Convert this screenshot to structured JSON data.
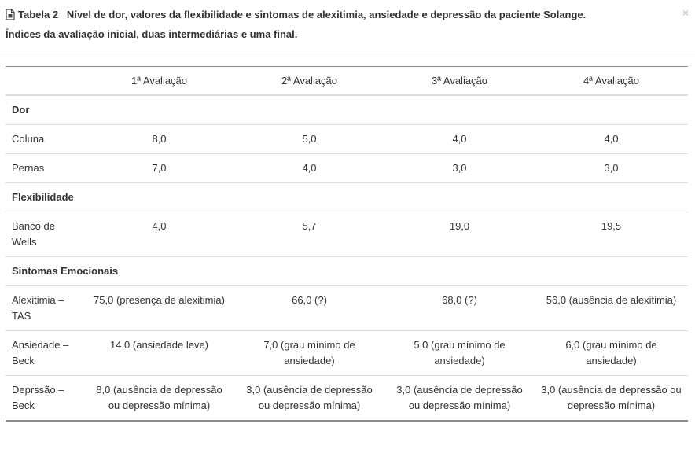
{
  "dialog": {
    "label": "Tabela 2",
    "title_line1": "Nível de dor, valores da flexibilidade e sintomas de alexitimia, ansiedade e depressão da paciente Solange.",
    "title_line2": "Índices da avaliação inicial, duas intermediárias e uma final.",
    "close_symbol": "×",
    "icon": "document-icon"
  },
  "table": {
    "columns": [
      "",
      "1ª Avaliação",
      "2ª Avaliação",
      "3ª Avaliação",
      "4ª Avaliação"
    ],
    "sections": [
      {
        "title": "Dor",
        "rows": [
          {
            "label": "Coluna",
            "values": [
              "8,0",
              "5,0",
              "4,0",
              "4,0"
            ]
          },
          {
            "label": "Pernas",
            "values": [
              "7,0",
              "4,0",
              "3,0",
              "3,0"
            ]
          }
        ]
      },
      {
        "title": "Flexibilidade",
        "rows": [
          {
            "label": "Banco de Wells",
            "values": [
              "4,0",
              "5,7",
              "19,0",
              "19,5"
            ]
          }
        ]
      },
      {
        "title": "Sintomas Emocionais",
        "rows": [
          {
            "label": "Alexitimia – TAS",
            "values": [
              "75,0 (presença de alexitimia)",
              "66,0 (?)",
              "68,0 (?)",
              "56,0 (ausência de alexitimia)"
            ]
          },
          {
            "label": "Ansiedade – Beck",
            "values": [
              "14,0 (ansiedade leve)",
              "7,0 (grau mínimo de ansiedade)",
              "5,0 (grau mínimo de ansiedade)",
              "6,0 (grau mínimo de ansiedade)"
            ]
          },
          {
            "label": "Deprssão – Beck",
            "values": [
              "8,0 (ausência de depressão ou depressão mínima)",
              "3,0 (ausência de depressão ou depressão mínima)",
              "3,0 (ausência de depressão ou depressão mínima)",
              "3,0 (ausência de depressão ou depressão mínima)"
            ]
          }
        ]
      }
    ]
  }
}
